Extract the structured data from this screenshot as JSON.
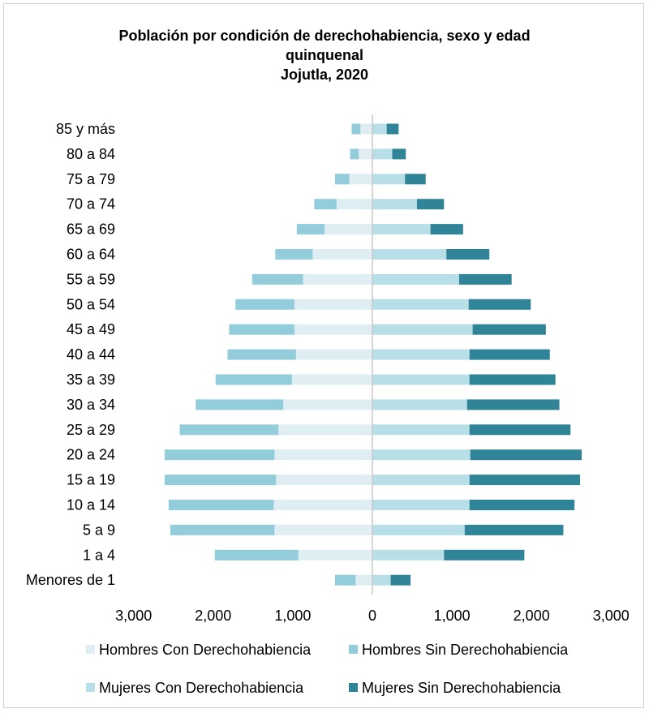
{
  "chart_data": {
    "type": "bar",
    "orientation": "horizontal-stacked-pyramid",
    "title": "Población por condición de derechohabiencia, sexo y edad",
    "title_line2": "quinquenal",
    "subtitle": "Jojutla, 2020",
    "categories": [
      "85 y más",
      "80 a 84",
      "75 a 79",
      "70 a 74",
      "65 a 69",
      "60 a 64",
      "55 a 59",
      "50 a 54",
      "45 a 49",
      "40 a 44",
      "35 a 39",
      "30 a 34",
      "25 a 29",
      "20 a 24",
      "15 a 19",
      "10 a 14",
      "5 a 9",
      "1 a 4",
      "Menores de 1"
    ],
    "series": [
      {
        "name": "Hombres Con Derechohabiencia",
        "side": "left",
        "color": "#deeef3",
        "values": [
          150,
          170,
          290,
          450,
          600,
          750,
          870,
          980,
          980,
          960,
          1010,
          1120,
          1180,
          1230,
          1210,
          1240,
          1230,
          930,
          210
        ]
      },
      {
        "name": "Hombres Sin Derechohabiencia",
        "side": "left",
        "color": "#93cddb",
        "values": [
          110,
          110,
          180,
          280,
          350,
          470,
          640,
          740,
          820,
          860,
          960,
          1100,
          1240,
          1380,
          1400,
          1320,
          1310,
          1050,
          260
        ]
      },
      {
        "name": "Mujeres Con Derechohabiencia",
        "side": "right",
        "color": "#b8dfe8",
        "values": [
          180,
          250,
          410,
          560,
          730,
          930,
          1090,
          1210,
          1260,
          1220,
          1220,
          1190,
          1220,
          1230,
          1220,
          1220,
          1160,
          900,
          230
        ]
      },
      {
        "name": "Mujeres Sin Derechohabiencia",
        "side": "right",
        "color": "#2f8597",
        "values": [
          150,
          170,
          260,
          340,
          410,
          540,
          660,
          780,
          920,
          1010,
          1080,
          1160,
          1270,
          1400,
          1390,
          1320,
          1240,
          1010,
          250
        ]
      }
    ],
    "xticks": [
      "3,000",
      "2,000",
      "1,000",
      "0",
      "1,000",
      "2,000",
      "3,000"
    ],
    "xlim": [
      -3000,
      3000
    ],
    "legend_position": "bottom",
    "grid": false
  }
}
